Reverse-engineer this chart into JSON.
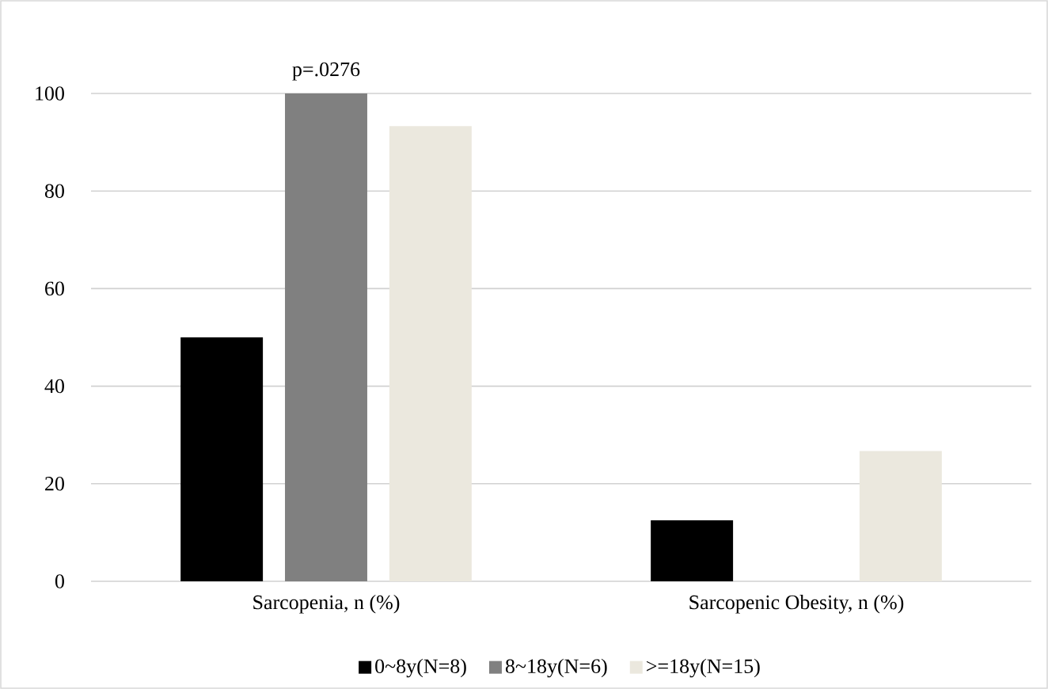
{
  "chart_data": {
    "type": "bar",
    "categories": [
      "Sarcopenia, n (%)",
      "Sarcopenic Obesity, n (%)"
    ],
    "series": [
      {
        "name": "0~8y(N=8)",
        "color": "#000000",
        "values": [
          50,
          12.5
        ]
      },
      {
        "name": "8~18y(N=6)",
        "color": "#808080",
        "values": [
          100,
          0
        ]
      },
      {
        "name": ">=18y(N=15)",
        "color": "#ebe8de",
        "values": [
          93.3,
          26.7
        ]
      }
    ],
    "ylim": [
      0,
      100
    ],
    "yticks": [
      0,
      20,
      40,
      60,
      80,
      100
    ],
    "grid": "y",
    "legend": "bottom",
    "annotations": [
      {
        "text": "p=.0276",
        "x": "Sarcopenia, n (%)",
        "y": 100
      }
    ]
  }
}
